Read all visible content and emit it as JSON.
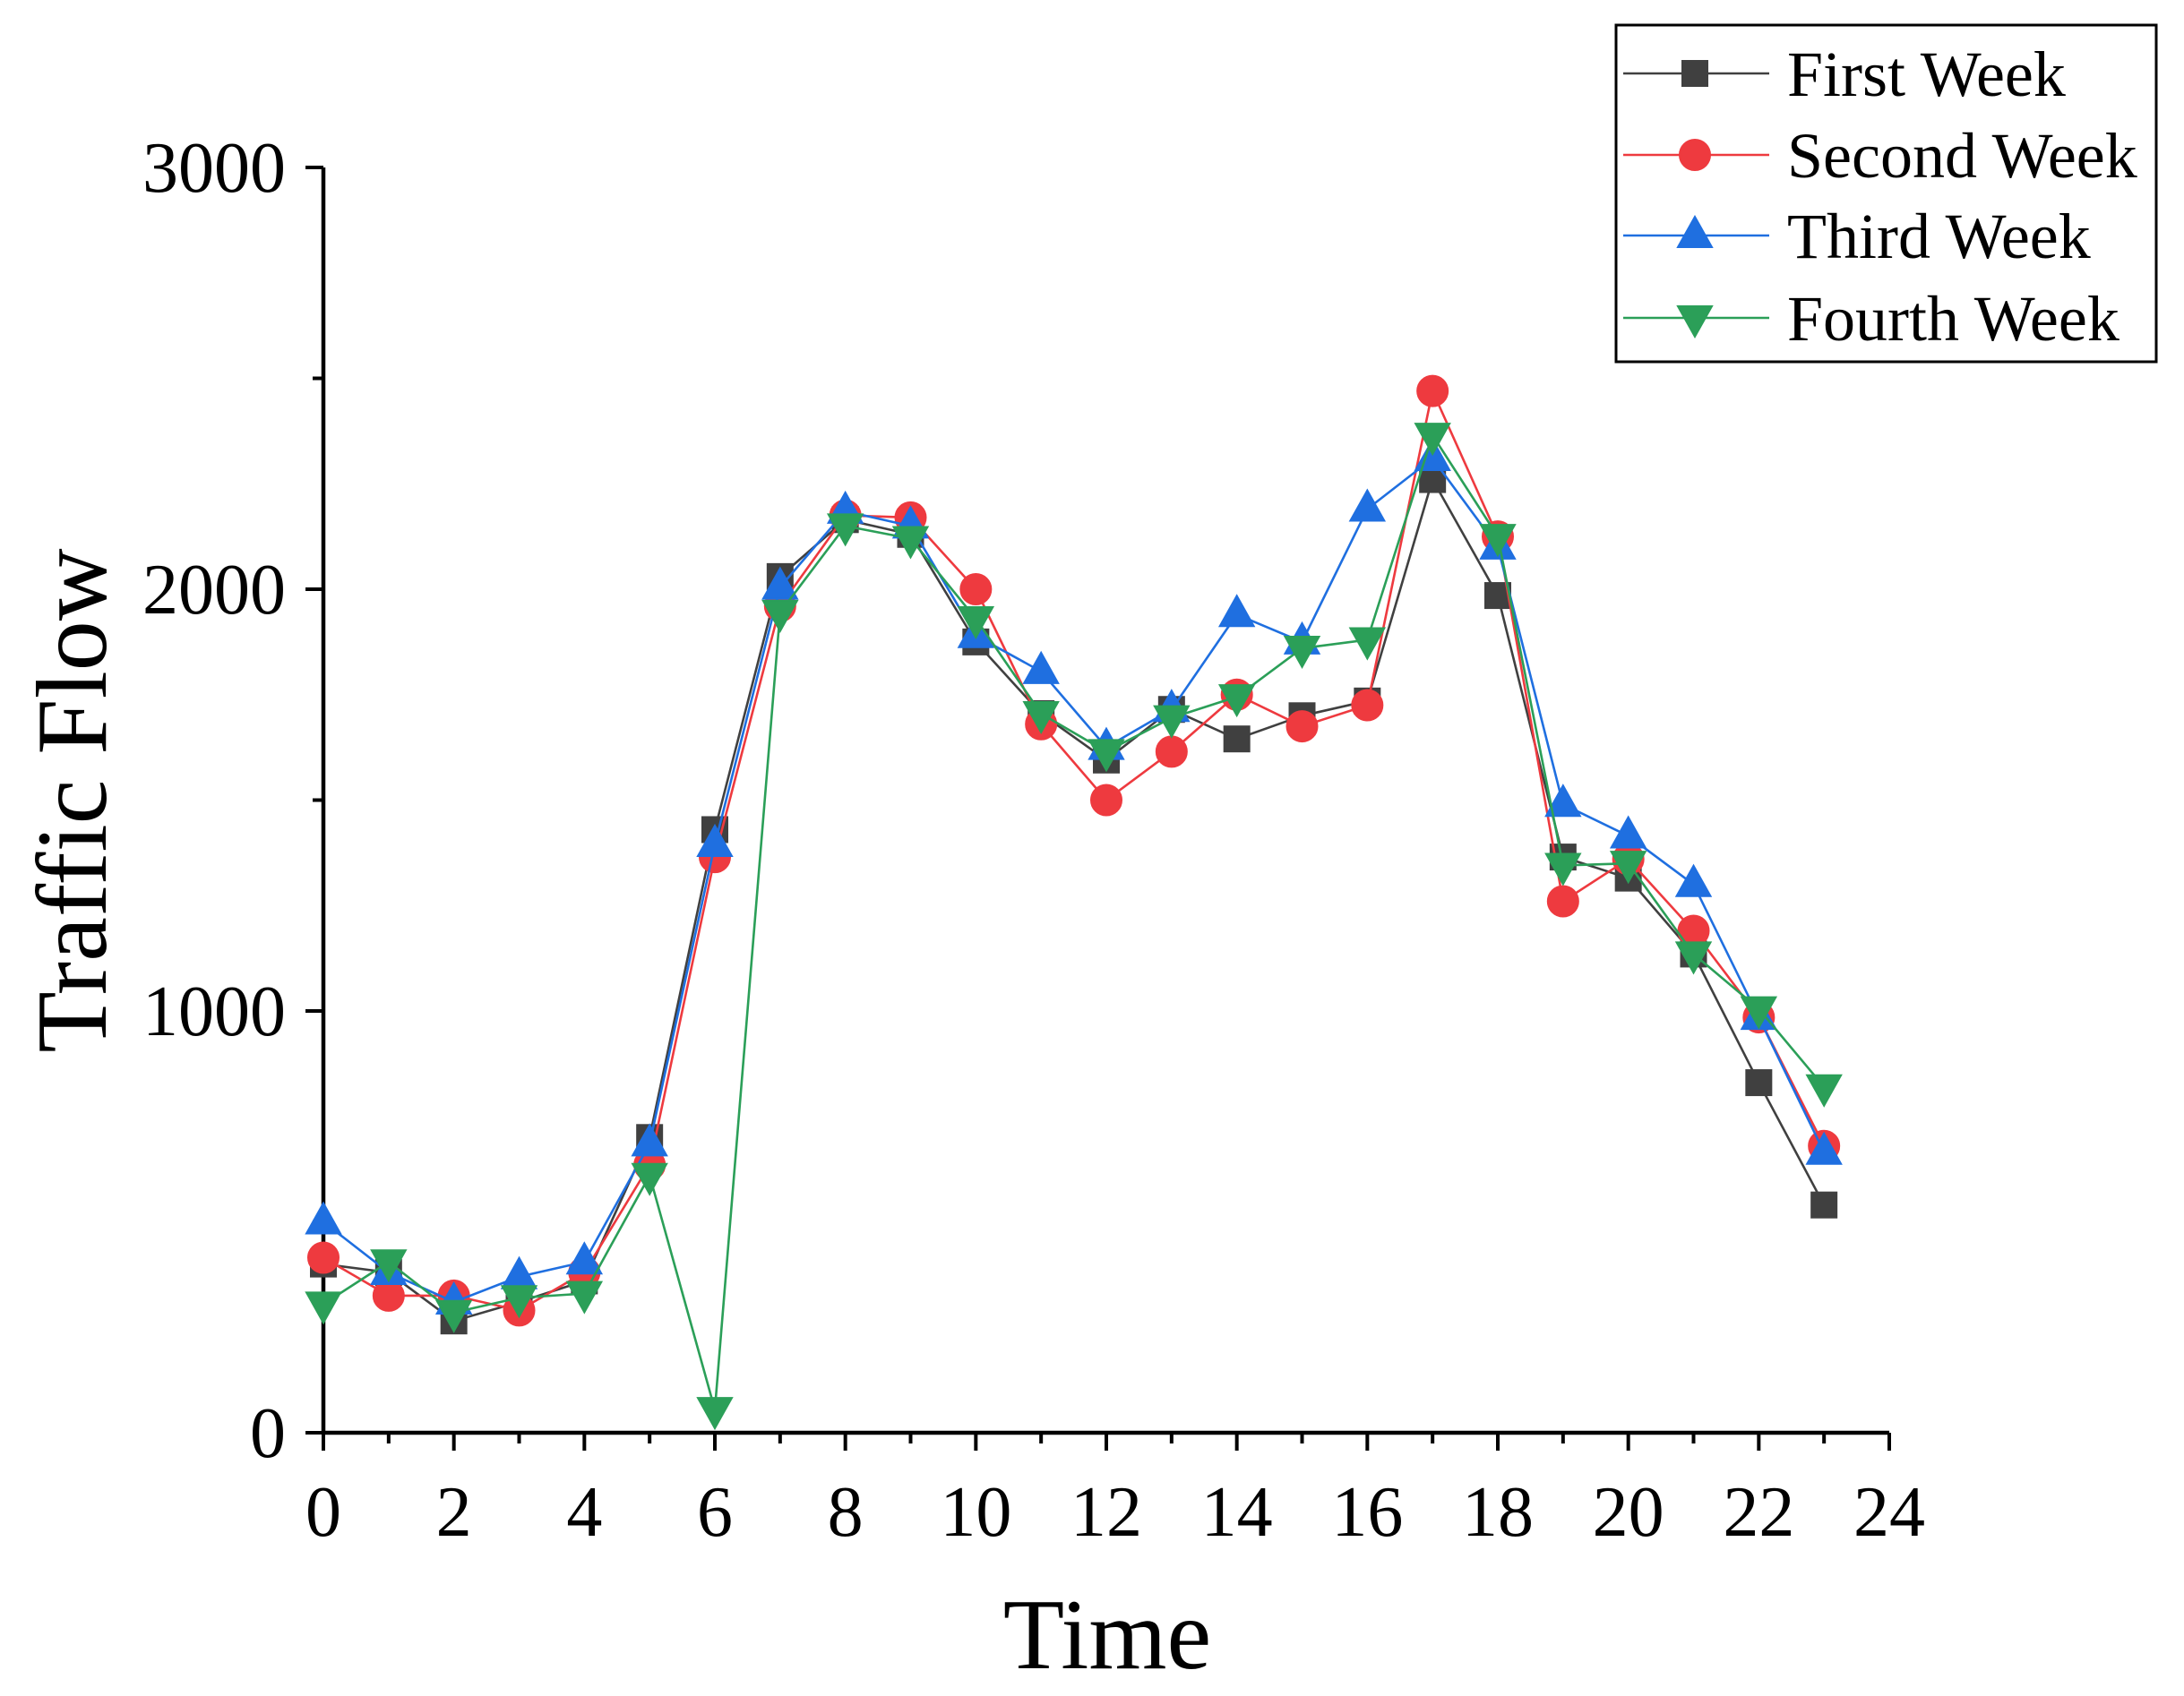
{
  "chart_data": {
    "type": "line",
    "title": "",
    "xlabel": "Time",
    "ylabel": "Traffic Flow",
    "xlim": [
      0,
      24
    ],
    "ylim": [
      0,
      3000
    ],
    "x_ticks": [
      0,
      2,
      4,
      6,
      8,
      10,
      12,
      14,
      16,
      18,
      20,
      22,
      24
    ],
    "y_ticks": [
      0,
      1000,
      2000,
      3000
    ],
    "x_minor_step": 1,
    "y_minor_step": 500,
    "grid": false,
    "legend_position": "top-right",
    "x": [
      0,
      1,
      2,
      3,
      4,
      5,
      6,
      7,
      8,
      9,
      10,
      11,
      12,
      13,
      14,
      15,
      16,
      17,
      18,
      19,
      20,
      21,
      22,
      23
    ],
    "series": [
      {
        "name": "First Week",
        "color": "#404040",
        "marker": "square",
        "values": [
          400,
          380,
          265,
          310,
          360,
          700,
          1430,
          2030,
          2165,
          2130,
          1875,
          1705,
          1595,
          1715,
          1645,
          1700,
          1735,
          2260,
          1985,
          1365,
          1315,
          1135,
          830,
          540
        ]
      },
      {
        "name": "Second Week",
        "color": "#ee3a3f",
        "marker": "circle",
        "values": [
          415,
          325,
          325,
          290,
          380,
          635,
          1365,
          1960,
          2175,
          2170,
          2000,
          1680,
          1500,
          1615,
          1750,
          1675,
          1725,
          2470,
          2125,
          1260,
          1360,
          1190,
          985,
          680
        ]
      },
      {
        "name": "Third Week",
        "color": "#1f6fe0",
        "marker": "triangle-up",
        "values": [
          500,
          380,
          310,
          370,
          405,
          685,
          1395,
          2005,
          2185,
          2150,
          1890,
          1805,
          1625,
          1715,
          1940,
          1875,
          2190,
          2310,
          2100,
          1490,
          1415,
          1300,
          985,
          665
        ]
      },
      {
        "name": "Fourth Week",
        "color": "#2b9f58",
        "marker": "triangle-down",
        "values": [
          305,
          405,
          285,
          320,
          330,
          610,
          55,
          1945,
          2150,
          2120,
          1930,
          1705,
          1615,
          1695,
          1745,
          1860,
          1880,
          2365,
          2125,
          1345,
          1350,
          1135,
          1005,
          820
        ]
      }
    ]
  }
}
